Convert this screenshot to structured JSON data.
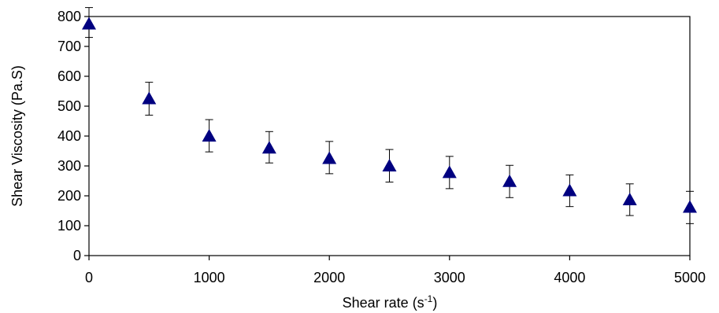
{
  "chart_data": {
    "type": "scatter",
    "xlabel": "Shear rate (s",
    "xlabel_superscript": "-1",
    "xlabel_suffix": ")",
    "ylabel": "Shear Viscosity (Pa.S)",
    "xlim": [
      0,
      5000
    ],
    "ylim": [
      0,
      800
    ],
    "xticks": [
      "0",
      "1000",
      "2000",
      "3000",
      "4000",
      "5000"
    ],
    "yticks": [
      "0",
      "100",
      "200",
      "300",
      "400",
      "500",
      "600",
      "700",
      "800"
    ],
    "grid": false,
    "legend": "none",
    "marker": "triangle",
    "marker_color": "#000080",
    "error_bar_color": "#000000",
    "series": [
      {
        "x": [
          0,
          500,
          1000,
          1500,
          2000,
          2500,
          3000,
          3500,
          4000,
          4500,
          5000
        ],
        "y": [
          775,
          525,
          400,
          360,
          325,
          300,
          278,
          248,
          217,
          187,
          162
        ],
        "error_upper": [
          830,
          580,
          455,
          415,
          382,
          355,
          332,
          302,
          270,
          240,
          215
        ],
        "error_lower": [
          730,
          470,
          347,
          310,
          274,
          246,
          224,
          194,
          164,
          134,
          107
        ]
      }
    ]
  }
}
